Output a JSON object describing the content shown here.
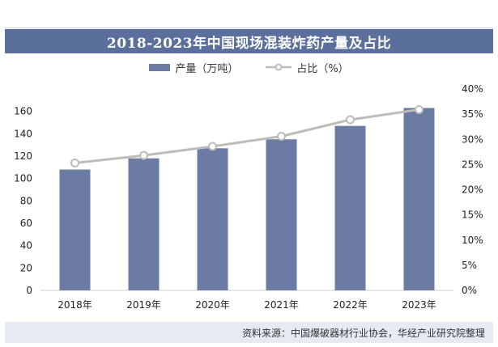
{
  "title": "2018-2023年中国现场混装炸药产量及占比",
  "source": "资料来源：中国爆破器材行业协会，华经产业研究院整理",
  "colors": {
    "bar": "#6b7ba3",
    "line": "#bcbcbc",
    "title_bg": "#5b6f9c",
    "footer_bg": "#e6ebf3"
  },
  "chart_data": {
    "type": "bar",
    "categories": [
      "2018年",
      "2019年",
      "2020年",
      "2021年",
      "2022年",
      "2023年"
    ],
    "series": [
      {
        "name": "产量（万吨）",
        "type": "bar",
        "axis": "left",
        "values": [
          108,
          118,
          127,
          135,
          147,
          163
        ]
      },
      {
        "name": "占比（%）",
        "type": "line",
        "axis": "right",
        "values": [
          25.3,
          26.8,
          28.6,
          30.6,
          33.9,
          35.9
        ]
      }
    ],
    "y_left": {
      "ylim": [
        0,
        180
      ],
      "ticks": [
        0,
        20,
        40,
        60,
        80,
        100,
        120,
        140,
        160
      ]
    },
    "y_right": {
      "ylim": [
        0,
        40
      ],
      "ticks": [
        "0%",
        "5%",
        "10%",
        "15%",
        "20%",
        "25%",
        "30%",
        "35%",
        "40%"
      ]
    },
    "grid": false,
    "legend": "top-center"
  }
}
